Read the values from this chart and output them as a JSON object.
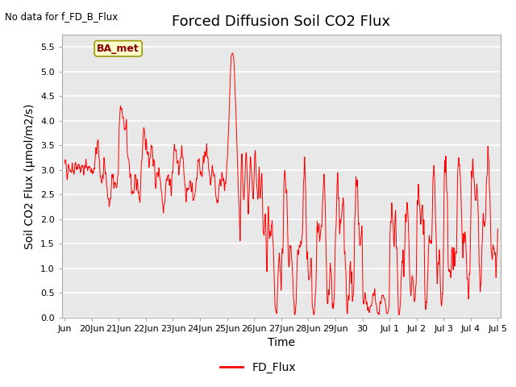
{
  "title": "Forced Diffusion Soil CO2 Flux",
  "no_data_label": "No data for f_FD_B_Flux",
  "ylabel": "Soil CO2 Flux (µmol/m2/s)",
  "xlabel": "Time",
  "ylim": [
    0.0,
    5.75
  ],
  "yticks": [
    0.0,
    0.5,
    1.0,
    1.5,
    2.0,
    2.5,
    3.0,
    3.5,
    4.0,
    4.5,
    5.0,
    5.5
  ],
  "legend_label": "FD_Flux",
  "legend_line_color": "red",
  "ba_met_label": "BA_met",
  "ba_met_facecolor": "#ffffcc",
  "ba_met_edgecolor": "#999900",
  "line_color": "red",
  "background_color": "#e8e8e8",
  "grid_color": "white",
  "title_fontsize": 13,
  "axis_label_fontsize": 10,
  "tick_label_fontsize": 8,
  "xtick_positions": [
    0,
    1,
    2,
    3,
    4,
    5,
    6,
    7,
    8,
    9,
    10,
    11,
    12,
    13,
    14,
    15,
    16
  ],
  "xtick_labels": [
    "Jun",
    "20Jun",
    "21Jun",
    "22Jun",
    "23Jun",
    "24Jun",
    "25Jun",
    "26Jun",
    "27Jun",
    "28Jun",
    "29Jun",
    "30",
    "Jul 1",
    "Jul 2",
    "Jul 3",
    "Jul 4",
    "Jul 5"
  ]
}
